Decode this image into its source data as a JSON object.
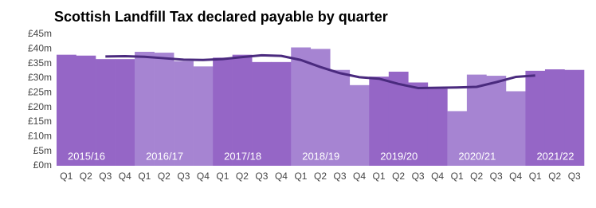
{
  "chart_data": {
    "type": "bar",
    "title": "Scottish Landfill Tax declared payable by quarter",
    "categories": [
      "Q1",
      "Q2",
      "Q3",
      "Q4",
      "Q1",
      "Q2",
      "Q3",
      "Q4",
      "Q1",
      "Q2",
      "Q3",
      "Q4",
      "Q1",
      "Q2",
      "Q3",
      "Q4",
      "Q1",
      "Q2",
      "Q3",
      "Q4",
      "Q1",
      "Q2",
      "Q3",
      "Q4",
      "Q1",
      "Q2",
      "Q3"
    ],
    "years": [
      "2015/16",
      "2016/17",
      "2017/18",
      "2018/19",
      "2019/20",
      "2020/21",
      "2021/22"
    ],
    "series": [
      {
        "type": "bar",
        "colors": [
          "#9566c6",
          "#a684d2"
        ],
        "values": [
          38,
          37.7,
          36.5,
          36.5,
          39,
          38.7,
          35.8,
          34,
          37,
          38,
          35.5,
          35.5,
          40.5,
          40,
          32.8,
          27.6,
          30.5,
          32.2,
          28.5,
          26.3,
          18.7,
          31.2,
          30.8,
          25.5,
          32.5,
          33,
          32.8
        ]
      },
      {
        "type": "line",
        "color": "#4a2a7e",
        "values": [
          null,
          null,
          37.4,
          37.5,
          37.3,
          36.8,
          36.3,
          36.2,
          36.5,
          37.2,
          37.8,
          37.6,
          36.2,
          33.8,
          31.7,
          30.3,
          29.8,
          28,
          26.6,
          26.7,
          26.8,
          27,
          28.6,
          30.4,
          30.9,
          null,
          null
        ]
      }
    ],
    "ylim": [
      0,
      45
    ],
    "yticks": [
      {
        "value": 0,
        "label": "£0m"
      },
      {
        "value": 5,
        "label": "£5m"
      },
      {
        "value": 10,
        "label": "£10m"
      },
      {
        "value": 15,
        "label": "£15m"
      },
      {
        "value": 20,
        "label": "£20m"
      },
      {
        "value": 25,
        "label": "£25m"
      },
      {
        "value": 30,
        "label": "£30m"
      },
      {
        "value": 35,
        "label": "£35m"
      },
      {
        "value": 40,
        "label": "£40m"
      },
      {
        "value": 45,
        "label": "£45m"
      }
    ]
  }
}
